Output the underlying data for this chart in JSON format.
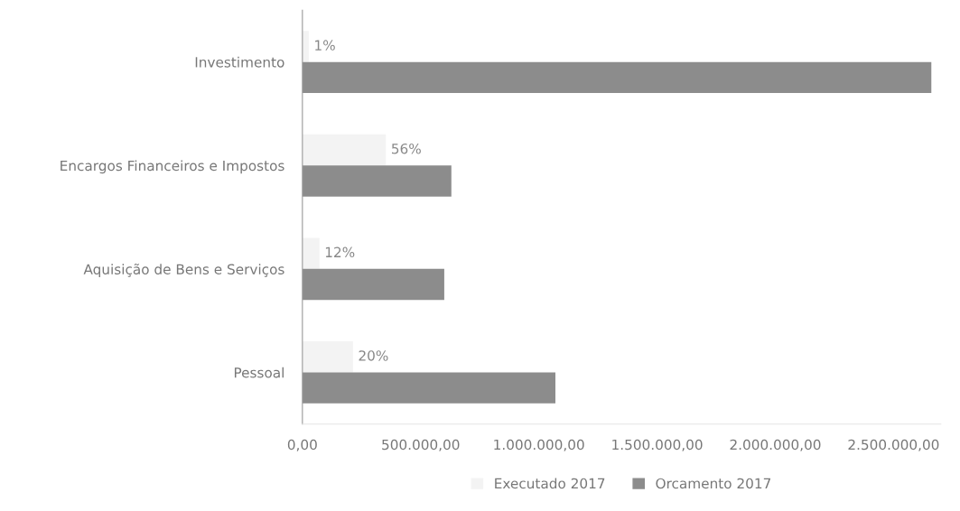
{
  "chart_data": {
    "type": "bar",
    "orientation": "horizontal",
    "categories": [
      "Investimento",
      "Encargos Financeiros e Impostos",
      "Aquisição de Bens e Serviços",
      "Pessoal"
    ],
    "series": [
      {
        "name": "Executado 2017",
        "color": "#f3f3f3",
        "values": [
          27000,
          353000,
          72000,
          214000
        ]
      },
      {
        "name": "Orcamento 2017",
        "color": "#8c8c8c",
        "values": [
          2660000,
          630000,
          600000,
          1070000
        ]
      }
    ],
    "xlim": [
      0,
      2700000
    ],
    "xticks": [
      {
        "value": 0,
        "label": "0,00"
      },
      {
        "value": 500000,
        "label": "500.000,00"
      },
      {
        "value": 1000000,
        "label": "1.000.000,00"
      },
      {
        "value": 1500000,
        "label": "1.500.000,00"
      },
      {
        "value": 2000000,
        "label": "2.000.000,00"
      },
      {
        "value": 2500000,
        "label": "2.500.000,00"
      }
    ],
    "annotations": [
      {
        "text": "1%",
        "x": 27000,
        "y": "Investimento"
      },
      {
        "text": "56%",
        "x": 353000,
        "y": "Encargos Financeiros e Impostos"
      },
      {
        "text": "12%",
        "x": 72000,
        "y": "Aquisição de Bens e Serviços"
      },
      {
        "text": "20%",
        "x": 214000,
        "y": "Pessoal"
      }
    ],
    "grid": false,
    "legend": "bottom"
  }
}
